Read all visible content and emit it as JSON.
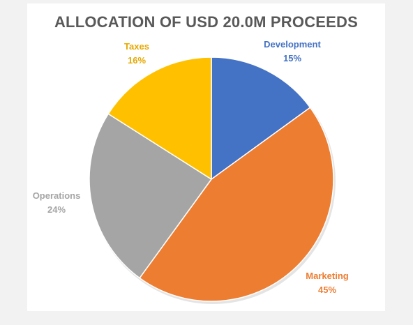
{
  "chart_data": {
    "type": "pie",
    "title": "ALLOCATION OF USD 20.0M PROCEEDS",
    "slices": [
      {
        "label": "Development",
        "value": 15,
        "percent_label": "15%",
        "color": "#4472c4"
      },
      {
        "label": "Marketing",
        "value": 45,
        "percent_label": "45%",
        "color": "#ed7d31"
      },
      {
        "label": "Operations",
        "value": 24,
        "percent_label": "24%",
        "color": "#a5a5a5"
      },
      {
        "label": "Taxes",
        "value": 16,
        "percent_label": "16%",
        "color": "#ffc000"
      }
    ],
    "start": "12 o'clock",
    "direction": "clockwise",
    "legend": "none",
    "data_labels": "outside"
  }
}
